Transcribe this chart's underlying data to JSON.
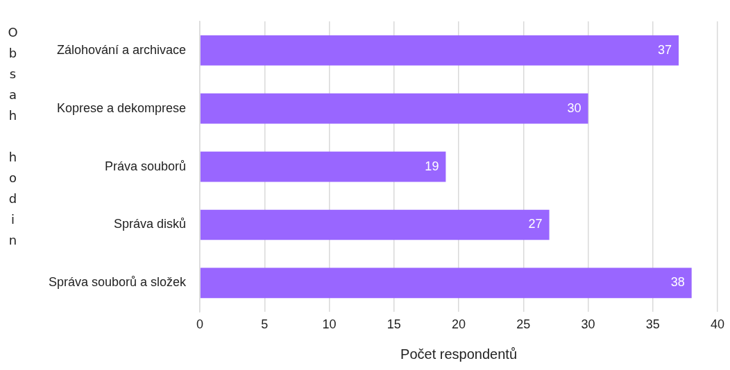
{
  "chart_data": {
    "type": "bar",
    "orientation": "horizontal",
    "xlabel": "Počet respondentů",
    "ylabel": "Obsah hodin",
    "categories": [
      "Zálohování a archivace",
      "Koprese a dekomprese",
      "Práva souborů",
      "Správa disků",
      "Správa souborů a složek"
    ],
    "values": [
      37,
      30,
      19,
      27,
      38
    ],
    "color": "#9966ff",
    "xlim": [
      0,
      40
    ],
    "xticks": [
      0,
      5,
      10,
      15,
      20,
      25,
      30,
      35,
      40
    ],
    "grid": "x",
    "data_labels": true,
    "legend": false
  }
}
